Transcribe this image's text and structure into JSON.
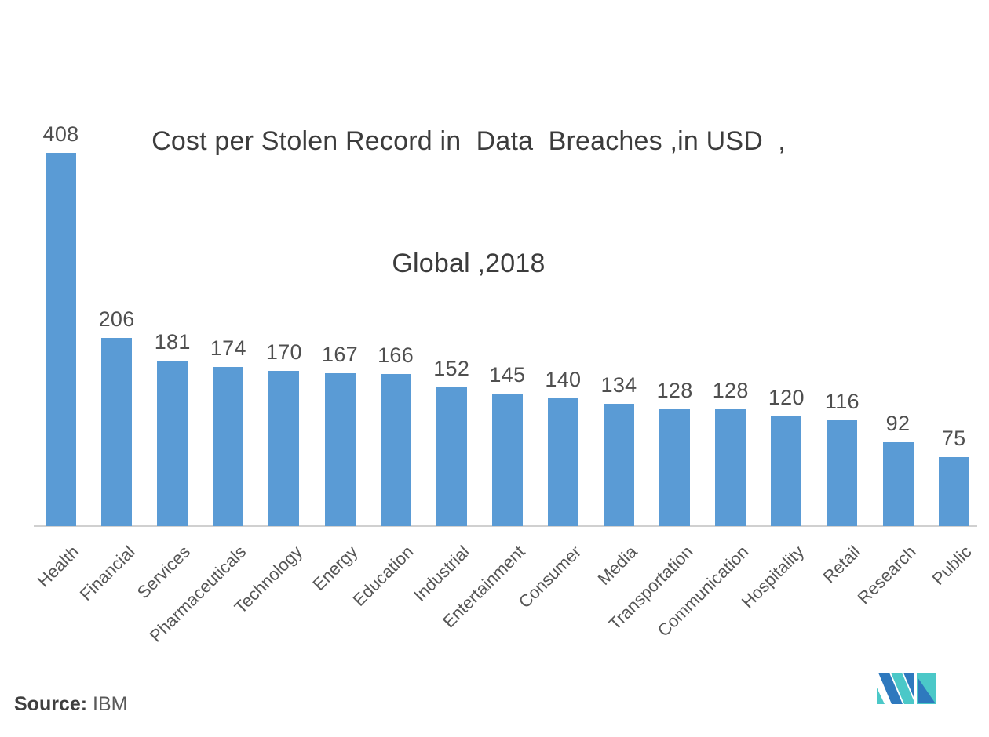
{
  "title": {
    "line1": "Cost per Stolen Record in  Data  Breaches ,in USD  ,",
    "line2": "Global ,2018"
  },
  "source": {
    "label": "Source:",
    "value": "IBM"
  },
  "chart_data": {
    "type": "bar",
    "title": "Cost per Stolen Record in Data Breaches, in USD, Global, 2018",
    "categories": [
      "Health",
      "Financial",
      "Services",
      "Pharmaceuticals",
      "Technology",
      "Energy",
      "Education",
      "Industrial",
      "Entertainment",
      "Consumer",
      "Media",
      "Transportation",
      "Communication",
      "Hospitality",
      "Retail",
      "Research",
      "Public"
    ],
    "values": [
      408,
      206,
      181,
      174,
      170,
      167,
      166,
      152,
      145,
      140,
      134,
      128,
      128,
      120,
      116,
      92,
      75
    ],
    "xlabel": "",
    "ylabel": "",
    "ylim": [
      0,
      408
    ],
    "grid": false,
    "legend": false,
    "data_labels": true,
    "bar_color": "#5A9BD5"
  },
  "colors": {
    "background": "#ffffff",
    "axis_line": "#d0d0d0",
    "title_text": "#3c3c3c",
    "label_text": "#565656",
    "value_text": "#4f4f4f"
  },
  "logo": {
    "name": "mordor-intelligence-logo",
    "teal": "#4BC8C8",
    "blue": "#2E79BE"
  }
}
